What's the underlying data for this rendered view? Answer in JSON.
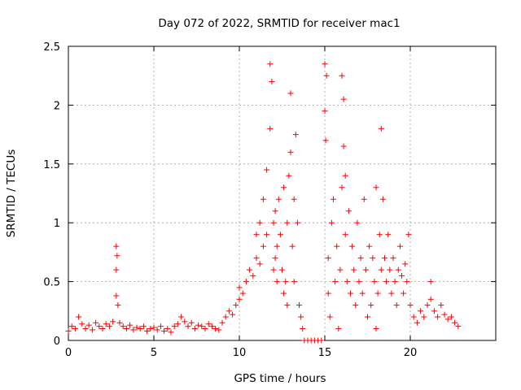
{
  "chart_data": {
    "type": "scatter",
    "title": "Day 072 of 2022, SRMTID for receiver mac1",
    "xlabel": "GPS time / hours",
    "ylabel": "SRMTID / TECUs",
    "xlim": [
      0,
      25
    ],
    "ylim": [
      0,
      2.5
    ],
    "xticks": [
      0,
      5,
      10,
      15,
      20
    ],
    "yticks": [
      0,
      0.5,
      1,
      1.5,
      2,
      2.5
    ],
    "ytick_labels": [
      "0",
      "0.5",
      "1",
      "1.5",
      "2",
      "2.5"
    ],
    "grid": true,
    "marker": "+",
    "color": "#ff0000",
    "series": [
      {
        "name": "SRMTID",
        "x": [
          0.0,
          0.2,
          0.4,
          0.6,
          0.8,
          1.0,
          1.2,
          1.4,
          1.6,
          1.8,
          2.0,
          2.2,
          2.4,
          2.6,
          2.8,
          2.8,
          2.8,
          2.85,
          2.9,
          3.0,
          3.2,
          3.4,
          3.6,
          3.8,
          4.0,
          4.2,
          4.4,
          4.6,
          4.8,
          5.0,
          5.2,
          5.4,
          5.6,
          5.8,
          6.0,
          6.2,
          6.4,
          6.6,
          6.8,
          7.0,
          7.2,
          7.4,
          7.6,
          7.8,
          8.0,
          8.2,
          8.4,
          8.6,
          8.8,
          9.0,
          9.2,
          9.4,
          9.6,
          9.8,
          10.0,
          10.0,
          10.2,
          10.4,
          10.6,
          10.8,
          11.0,
          11.0,
          11.2,
          11.2,
          11.4,
          11.4,
          11.6,
          11.6,
          11.8,
          11.8,
          11.9,
          12.0,
          12.0,
          12.1,
          12.1,
          12.2,
          12.2,
          12.3,
          12.4,
          12.5,
          12.6,
          12.6,
          12.7,
          12.8,
          12.8,
          12.9,
          13.0,
          13.0,
          13.1,
          13.2,
          13.2,
          13.3,
          13.4,
          13.5,
          13.6,
          13.7,
          13.8,
          14.0,
          14.2,
          14.4,
          14.6,
          14.8,
          15.0,
          15.0,
          15.05,
          15.1,
          15.2,
          15.2,
          15.3,
          15.4,
          15.5,
          15.6,
          15.7,
          15.8,
          15.9,
          16.0,
          16.0,
          16.1,
          16.1,
          16.2,
          16.2,
          16.3,
          16.4,
          16.5,
          16.6,
          16.7,
          16.8,
          16.9,
          17.0,
          17.1,
          17.2,
          17.3,
          17.4,
          17.5,
          17.6,
          17.7,
          17.8,
          17.9,
          18.0,
          18.0,
          18.1,
          18.2,
          18.3,
          18.3,
          18.4,
          18.5,
          18.6,
          18.7,
          18.8,
          18.9,
          19.0,
          19.1,
          19.2,
          19.3,
          19.4,
          19.5,
          19.6,
          19.7,
          19.8,
          19.9,
          20.0,
          20.2,
          20.4,
          20.6,
          20.8,
          21.0,
          21.2,
          21.2,
          21.4,
          21.6,
          21.8,
          22.0,
          22.2,
          22.4,
          22.6,
          22.8
        ],
        "y": [
          0.08,
          0.12,
          0.1,
          0.2,
          0.14,
          0.1,
          0.13,
          0.09,
          0.15,
          0.12,
          0.1,
          0.14,
          0.12,
          0.16,
          0.8,
          0.6,
          0.38,
          0.72,
          0.3,
          0.15,
          0.12,
          0.1,
          0.13,
          0.09,
          0.11,
          0.1,
          0.12,
          0.08,
          0.1,
          0.11,
          0.09,
          0.12,
          0.08,
          0.1,
          0.07,
          0.12,
          0.14,
          0.2,
          0.16,
          0.12,
          0.15,
          0.1,
          0.13,
          0.12,
          0.1,
          0.14,
          0.12,
          0.1,
          0.09,
          0.15,
          0.2,
          0.25,
          0.22,
          0.3,
          0.45,
          0.35,
          0.4,
          0.5,
          0.6,
          0.55,
          0.7,
          0.9,
          0.65,
          1.0,
          0.8,
          1.2,
          0.9,
          1.45,
          2.35,
          1.8,
          2.2,
          1.0,
          0.6,
          1.1,
          0.7,
          0.8,
          0.5,
          1.2,
          0.9,
          0.6,
          0.4,
          1.3,
          0.5,
          1.0,
          0.3,
          1.4,
          2.1,
          1.6,
          0.8,
          1.2,
          0.5,
          1.75,
          1.0,
          0.3,
          0.2,
          0.1,
          0.0,
          0.0,
          0.0,
          0.0,
          0.0,
          0.0,
          2.35,
          1.95,
          1.7,
          2.25,
          0.4,
          0.7,
          0.2,
          1.0,
          1.2,
          0.5,
          0.8,
          0.1,
          0.6,
          1.3,
          2.25,
          1.65,
          2.05,
          1.4,
          0.9,
          0.5,
          1.1,
          0.4,
          0.8,
          0.6,
          0.3,
          1.0,
          0.5,
          0.7,
          0.4,
          1.2,
          0.6,
          0.2,
          0.8,
          0.3,
          0.7,
          0.5,
          0.1,
          1.3,
          0.4,
          0.9,
          1.8,
          0.6,
          1.2,
          0.7,
          0.5,
          0.9,
          0.6,
          0.4,
          0.7,
          0.5,
          0.3,
          0.6,
          0.8,
          0.55,
          0.4,
          0.65,
          0.5,
          0.9,
          0.3,
          0.2,
          0.15,
          0.25,
          0.2,
          0.3,
          0.5,
          0.35,
          0.25,
          0.2,
          0.3,
          0.22,
          0.18,
          0.2,
          0.15,
          0.12
        ]
      }
    ]
  }
}
